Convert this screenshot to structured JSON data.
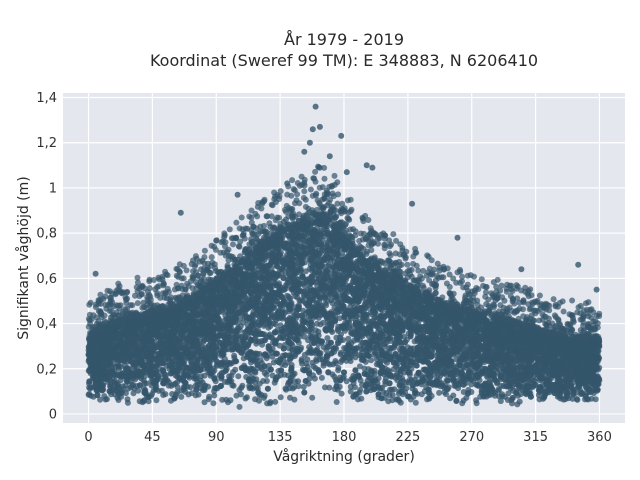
{
  "chart_data": {
    "type": "scatter",
    "title_line1": "År 1979 - 2019",
    "title_line2": "Koordinat (Sweref 99 TM): E 348883, N 6206410",
    "xlabel": "Vågriktning (grader)",
    "ylabel": "Signifikant våghöjd (m)",
    "xlim": [
      -18,
      378
    ],
    "ylim": [
      -0.04,
      1.42
    ],
    "x_ticks": [
      0,
      45,
      90,
      135,
      180,
      225,
      270,
      315,
      360
    ],
    "y_ticks": [
      0,
      0.2,
      0.4,
      0.6,
      0.8,
      1,
      1.2,
      1.4
    ],
    "x_tick_labels": [
      "0",
      "45",
      "90",
      "135",
      "180",
      "225",
      "270",
      "315",
      "360"
    ],
    "y_tick_labels": [
      "0",
      "0,2",
      "0,4",
      "0,6",
      "0,8",
      "1",
      "1,2",
      "1,4"
    ],
    "grid": true,
    "plot_bg": "#e5e7ef",
    "grid_color": "#ffffff",
    "marker_color": "#34566b",
    "envelope": {
      "x": [
        0,
        15,
        30,
        45,
        60,
        75,
        90,
        105,
        120,
        135,
        150,
        160,
        170,
        180,
        195,
        210,
        225,
        240,
        255,
        270,
        285,
        300,
        315,
        330,
        345,
        360
      ],
      "upper": [
        0.33,
        0.4,
        0.43,
        0.45,
        0.47,
        0.52,
        0.58,
        0.66,
        0.74,
        0.8,
        0.84,
        0.88,
        0.86,
        0.78,
        0.68,
        0.62,
        0.57,
        0.52,
        0.48,
        0.45,
        0.43,
        0.41,
        0.38,
        0.35,
        0.34,
        0.33
      ],
      "lower": [
        0.05,
        0.05,
        0.04,
        0.04,
        0.04,
        0.04,
        0.03,
        0.03,
        0.03,
        0.03,
        0.03,
        0.03,
        0.03,
        0.03,
        0.03,
        0.03,
        0.04,
        0.04,
        0.04,
        0.04,
        0.04,
        0.04,
        0.04,
        0.05,
        0.05,
        0.05
      ]
    },
    "notable_points": [
      {
        "x": 5,
        "y": 0.62
      },
      {
        "x": 65,
        "y": 0.89
      },
      {
        "x": 105,
        "y": 0.97
      },
      {
        "x": 140,
        "y": 1.02
      },
      {
        "x": 152,
        "y": 1.16
      },
      {
        "x": 156,
        "y": 1.2
      },
      {
        "x": 158,
        "y": 1.26
      },
      {
        "x": 160,
        "y": 1.36
      },
      {
        "x": 163,
        "y": 1.27
      },
      {
        "x": 170,
        "y": 1.14
      },
      {
        "x": 178,
        "y": 1.23
      },
      {
        "x": 182,
        "y": 1.07
      },
      {
        "x": 196,
        "y": 1.1
      },
      {
        "x": 200,
        "y": 1.09
      },
      {
        "x": 228,
        "y": 0.93
      },
      {
        "x": 260,
        "y": 0.78
      },
      {
        "x": 305,
        "y": 0.64
      },
      {
        "x": 345,
        "y": 0.66
      },
      {
        "x": 358,
        "y": 0.55
      }
    ]
  }
}
